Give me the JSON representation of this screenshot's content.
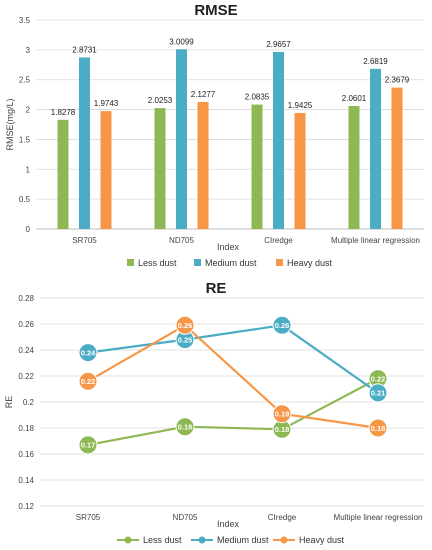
{
  "colors": {
    "less": "#8DB853",
    "medium": "#4BACC6",
    "heavy": "#F79646",
    "grid": "#D9D9D9",
    "axis": "#BFBFBF"
  },
  "chart_data": [
    {
      "type": "bar",
      "title": "RMSE",
      "xlabel": "Index",
      "ylabel": "RMSE(mg/L)",
      "ylim": [
        0,
        3.5
      ],
      "yticks": [
        "0",
        "0.5",
        "1",
        "1.5",
        "2",
        "2.5",
        "3",
        "3.5"
      ],
      "grid": true,
      "legend_position": "bottom",
      "categories": [
        "SR705",
        "ND705",
        "CIredge",
        "Multiple linear regression"
      ],
      "series": [
        {
          "name": "Less dust",
          "values": [
            1.8278,
            2.0253,
            2.0835,
            2.0601
          ],
          "labels": [
            "1.8278",
            "2.0253",
            "2.0835",
            "2.0601"
          ]
        },
        {
          "name": "Medium dust",
          "values": [
            2.8731,
            3.0099,
            2.9657,
            2.6819
          ],
          "labels": [
            "2.8731",
            "3.0099",
            "2.9657",
            "2.6819"
          ]
        },
        {
          "name": "Heavy dust",
          "values": [
            1.9743,
            2.1277,
            1.9425,
            2.3679
          ],
          "labels": [
            "1.9743",
            "2.1277",
            "1.9425",
            "2.3679"
          ]
        }
      ]
    },
    {
      "type": "line",
      "title": "RE",
      "xlabel": "Index",
      "ylabel": "RE",
      "ylim": [
        0.12,
        0.28
      ],
      "yticks": [
        "0.12",
        "0.14",
        "0.16",
        "0.18",
        "0.2",
        "0.22",
        "0.24",
        "0.26",
        "0.28"
      ],
      "grid": true,
      "legend_position": "bottom",
      "categories": [
        "SR705",
        "ND705",
        "CIredge",
        "Multiple linear regression"
      ],
      "series": [
        {
          "name": "Less dust",
          "values": [
            0.167,
            0.181,
            0.179,
            0.218
          ],
          "labels": [
            "0.17",
            "0.18",
            "0.18",
            "0.22"
          ]
        },
        {
          "name": "Medium dust",
          "values": [
            0.238,
            0.248,
            0.259,
            0.207
          ],
          "labels": [
            "0.24",
            "0.25",
            "0.26",
            "0.21"
          ]
        },
        {
          "name": "Heavy dust",
          "values": [
            0.216,
            0.259,
            0.191,
            0.18
          ],
          "labels": [
            "0.22",
            "0.26",
            "0.19",
            "0.18"
          ]
        }
      ]
    }
  ]
}
